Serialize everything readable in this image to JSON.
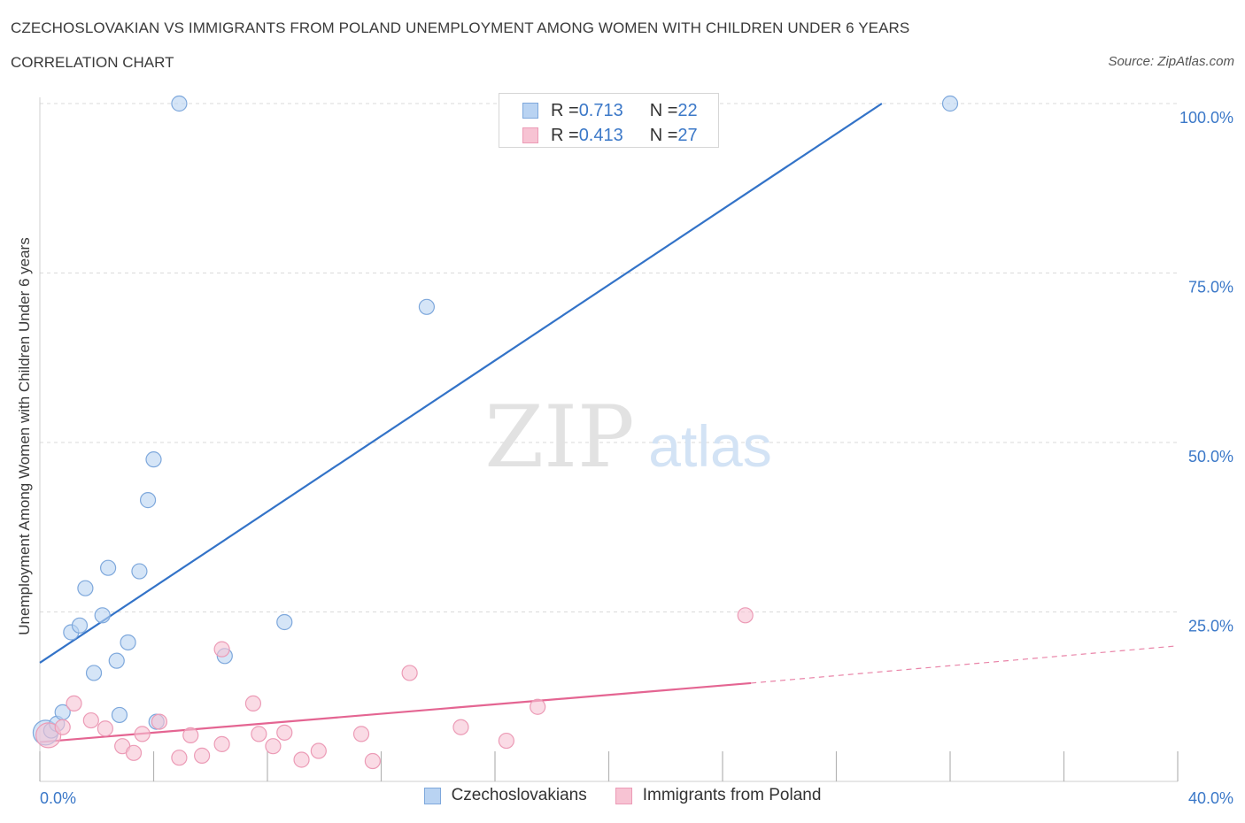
{
  "header": {
    "title": "CZECHOSLOVAKIAN VS IMMIGRANTS FROM POLAND UNEMPLOYMENT AMONG WOMEN WITH CHILDREN UNDER 6 YEARS",
    "subtitle": "CORRELATION CHART",
    "source": "Source: ZipAtlas.com"
  },
  "watermark": {
    "zip": "ZIP",
    "atlas": "atlas"
  },
  "legend_top": {
    "rows": [
      {
        "r_label": "R = ",
        "r_value": "0.713",
        "n_label": "N = ",
        "n_value": "22"
      },
      {
        "r_label": "R = ",
        "r_value": "0.413",
        "n_label": "N = ",
        "n_value": "27"
      }
    ]
  },
  "colors": {
    "blue_fill": "#b9d3f2",
    "blue_stroke": "#7ea8dc",
    "blue_line": "#3373c8",
    "pink_fill": "#f7c3d3",
    "pink_stroke": "#ec9bb6",
    "pink_line": "#e46592",
    "tick_label": "#3b78c8",
    "grid": "#dadada"
  },
  "chart_data": {
    "type": "scatter",
    "title": "CZECHOSLOVAKIAN VS IMMIGRANTS FROM POLAND UNEMPLOYMENT AMONG WOMEN WITH CHILDREN UNDER 6 YEARS",
    "subtitle": "CORRELATION CHART",
    "xlabel": "",
    "ylabel": "Unemployment Among Women with Children Under 6 years",
    "xlim": [
      0,
      40
    ],
    "ylim": [
      0,
      100
    ],
    "x_ticks_labels": [
      "0.0%",
      "40.0%"
    ],
    "y_ticks_labels": [
      "25.0%",
      "50.0%",
      "75.0%",
      "100.0%"
    ],
    "y_ticks": [
      25,
      50,
      75,
      100
    ],
    "grid": true,
    "legend_position": "top-center",
    "series": [
      {
        "name": "Czechoslovakians",
        "color": "blue",
        "r": 0.713,
        "n": 22,
        "points": [
          [
            0.2,
            7.2
          ],
          [
            0.4,
            7.5
          ],
          [
            0.6,
            8.5
          ],
          [
            0.8,
            10.2
          ],
          [
            1.1,
            22.0
          ],
          [
            1.4,
            23.0
          ],
          [
            1.6,
            28.5
          ],
          [
            1.9,
            16.0
          ],
          [
            2.2,
            24.5
          ],
          [
            2.4,
            31.5
          ],
          [
            2.7,
            17.8
          ],
          [
            2.8,
            9.8
          ],
          [
            3.1,
            20.5
          ],
          [
            3.5,
            31.0
          ],
          [
            3.8,
            41.5
          ],
          [
            4.0,
            47.5
          ],
          [
            4.1,
            8.8
          ],
          [
            4.9,
            100.0
          ],
          [
            6.5,
            18.5
          ],
          [
            8.6,
            23.5
          ],
          [
            13.6,
            70.0
          ],
          [
            32.0,
            100.0
          ]
        ],
        "trend": {
          "x0": 0,
          "y0": 17.5,
          "x1": 29.6,
          "y1": 100.0
        }
      },
      {
        "name": "Immigrants from Poland",
        "color": "pink",
        "r": 0.413,
        "n": 27,
        "points": [
          [
            0.3,
            6.8
          ],
          [
            0.8,
            8.0
          ],
          [
            1.2,
            11.5
          ],
          [
            1.8,
            9.0
          ],
          [
            2.3,
            7.8
          ],
          [
            2.9,
            5.2
          ],
          [
            3.3,
            4.2
          ],
          [
            3.6,
            7.0
          ],
          [
            4.2,
            8.8
          ],
          [
            4.9,
            3.5
          ],
          [
            5.3,
            6.8
          ],
          [
            5.7,
            3.8
          ],
          [
            6.4,
            5.5
          ],
          [
            6.4,
            19.5
          ],
          [
            7.5,
            11.5
          ],
          [
            7.7,
            7.0
          ],
          [
            8.2,
            5.2
          ],
          [
            8.6,
            7.2
          ],
          [
            9.2,
            3.2
          ],
          [
            9.8,
            4.5
          ],
          [
            11.3,
            7.0
          ],
          [
            11.7,
            3.0
          ],
          [
            13.0,
            16.0
          ],
          [
            14.8,
            8.0
          ],
          [
            16.4,
            6.0
          ],
          [
            17.5,
            11.0
          ],
          [
            24.8,
            24.5
          ]
        ],
        "trend": {
          "x0": 0,
          "y0": 5.8,
          "x1": 25.0,
          "y1": 14.5
        },
        "trend_extension": {
          "x0": 25.0,
          "y0": 14.5,
          "x1": 40.0,
          "y1": 20.0
        }
      }
    ]
  }
}
